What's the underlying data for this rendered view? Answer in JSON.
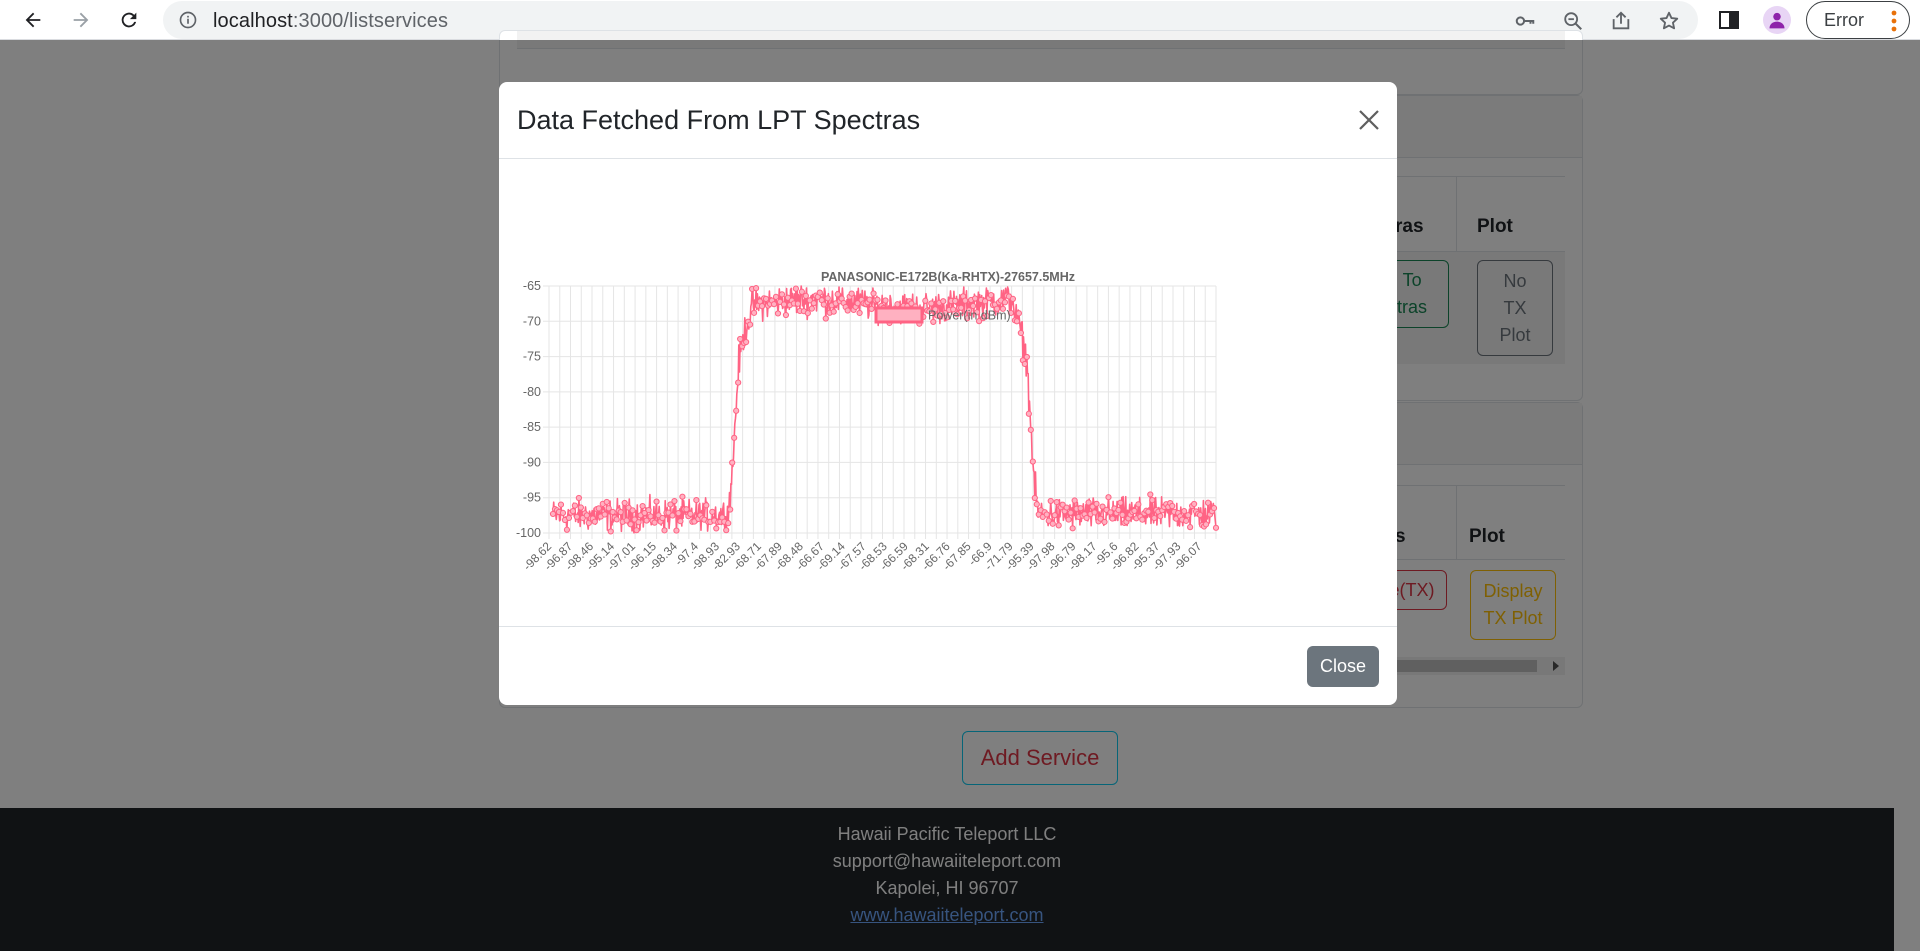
{
  "browser": {
    "url_host": "localhost",
    "url_path": ":3000/listservices",
    "profile_chip": "Error"
  },
  "background_page": {
    "card1": {},
    "card2": {
      "col_spectras": "ras",
      "col_plot": "Plot",
      "btn_add_spectras_line1": "d To",
      "btn_add_spectras_line2": "ctras",
      "btn_no_tx_plot": [
        "No",
        "TX",
        "Plot"
      ]
    },
    "card3": {
      "col_spectras": "s",
      "col_plot": "Plot",
      "btn_remove": "e(TX)",
      "btn_display_line1": "Display",
      "btn_display_line2": "TX Plot"
    },
    "add_service": "Add Service",
    "footer": {
      "company": "Hawaii Pacific Teleport LLC",
      "email": "support@hawaiiteleport.com",
      "address": "Kapolei, HI 96707",
      "website": "www.hawaiiteleport.com"
    }
  },
  "modal": {
    "title": "Data Fetched From LPT Spectras",
    "close_label": "Close"
  },
  "chart_data": {
    "type": "line",
    "title": "PANASONIC-E172B(Ka-RHTX)-27657.5MHz",
    "legend_position": "top",
    "series": [
      {
        "name": "Power(in dBm)",
        "color": "#ff6384",
        "fill": "#ffb1c1"
      }
    ],
    "ylim": [
      -100,
      -65
    ],
    "yticks": [
      -65,
      -70,
      -75,
      -80,
      -85,
      -90,
      -95,
      -100
    ],
    "xtick_labels": [
      "-98.62",
      "-96.87",
      "-98.46",
      "-95.14",
      "-97.01",
      "-96.15",
      "-98.34",
      "-97.4",
      "-98.93",
      "-82.93",
      "-68.71",
      "-67.89",
      "-68.48",
      "-66.67",
      "-69.14",
      "-67.57",
      "-68.53",
      "-66.59",
      "-68.31",
      "-66.76",
      "-67.85",
      "-66.9",
      "-71.79",
      "-95.39",
      "-97.98",
      "-96.79",
      "-98.17",
      "-95.6",
      "-96.82",
      "-95.37",
      "-97.93",
      "-96.07"
    ],
    "grid": true,
    "profile": {
      "num_points": 1000,
      "noise_floor_dbm": -97.5,
      "plateau_dbm": -67.5,
      "rise": [
        [
          0.265,
          -96
        ],
        [
          0.27,
          -92
        ],
        [
          0.275,
          -84
        ],
        [
          0.28,
          -76
        ],
        [
          0.29,
          -71
        ],
        [
          0.3,
          -68.5
        ]
      ],
      "fall": [
        [
          0.695,
          -68.5
        ],
        [
          0.705,
          -71
        ],
        [
          0.715,
          -76
        ],
        [
          0.72,
          -84
        ],
        [
          0.725,
          -92
        ],
        [
          0.73,
          -96
        ]
      ]
    }
  }
}
